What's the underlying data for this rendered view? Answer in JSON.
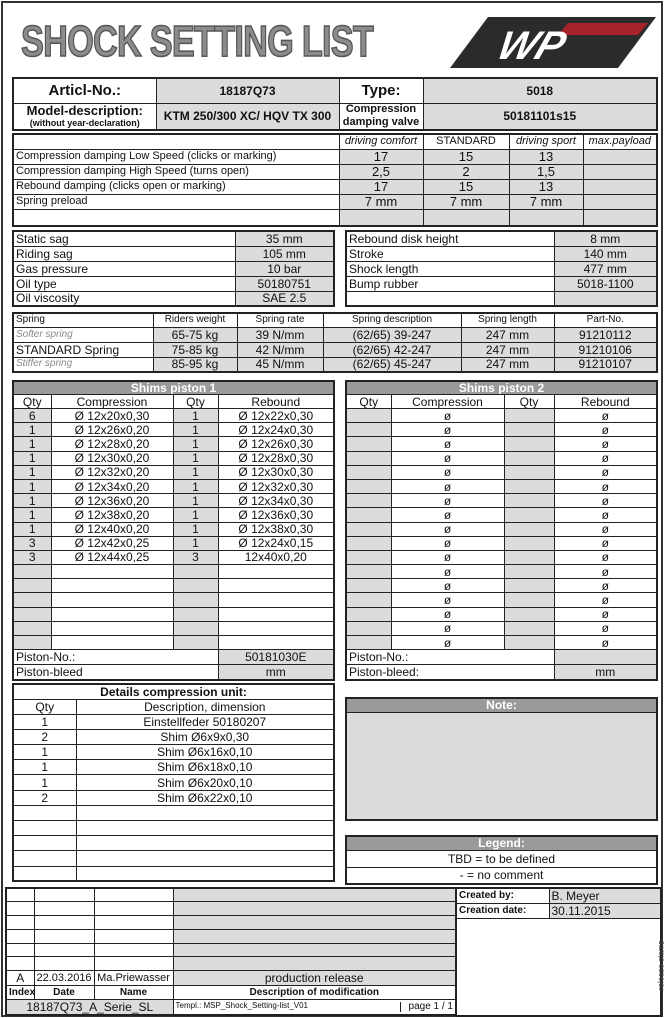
{
  "title": "SHOCK SETTING LIST",
  "logo": "WP",
  "header": {
    "artic_label": "Articl-No.:",
    "artic_value": "18187Q73",
    "type_label": "Type:",
    "type_value": "5018",
    "model_label": "Model-description:",
    "model_sub": "(without year-declaration)",
    "model_value": "KTM 250/300 XC/ HQV TX 300",
    "valve_label1": "Compression",
    "valve_label2": "damping valve",
    "valve_value": "50181101s15"
  },
  "settings": {
    "columns": [
      "",
      "driving comfort",
      "STANDARD",
      "driving sport",
      "max.payload"
    ],
    "rows": [
      [
        "Compression damping Low Speed (clicks or marking)",
        "17",
        "15",
        "13",
        ""
      ],
      [
        "Compression damping High Speed (turns open)",
        "2,5",
        "2",
        "1,5",
        ""
      ],
      [
        "Rebound damping (clicks open or marking)",
        "17",
        "15",
        "13",
        ""
      ],
      [
        "Spring preload",
        "7 mm",
        "7 mm",
        "7 mm",
        ""
      ],
      [
        "",
        "",
        "",
        "",
        ""
      ]
    ]
  },
  "info_left": [
    [
      "Static sag",
      "35 mm"
    ],
    [
      "Riding sag",
      "105 mm"
    ],
    [
      "Gas pressure",
      "10 bar"
    ],
    [
      "Oil type",
      "50180751"
    ],
    [
      "Oil viscosity",
      "SAE 2.5"
    ]
  ],
  "info_right": [
    [
      "Rebound disk height",
      "8 mm"
    ],
    [
      "Stroke",
      "140 mm"
    ],
    [
      "Shock length",
      "477 mm"
    ],
    [
      "Bump rubber",
      "5018-1100"
    ],
    [
      "",
      ""
    ]
  ],
  "springs": {
    "columns": [
      "Spring",
      "Riders weight",
      "Spring rate",
      "Spring description",
      "Spring length",
      "Part-No."
    ],
    "rows": [
      [
        "Softer spring",
        "65-75 kg",
        "39 N/mm",
        "(62/65) 39-247",
        "247 mm",
        "91210112"
      ],
      [
        "STANDARD Spring",
        "75-85 kg",
        "42 N/mm",
        "(62/65) 42-247",
        "247 mm",
        "91210106"
      ],
      [
        "Stiffer spring",
        "85-95 kg",
        "45 N/mm",
        "(62/65) 45-247",
        "247 mm",
        "91210107"
      ]
    ]
  },
  "shims1": {
    "title": "Shims piston 1",
    "columns": [
      "Qty",
      "Compression",
      "Qty",
      "Rebound"
    ],
    "rows": [
      [
        "6",
        "Ø  12x20x0,30",
        "1",
        "Ø  12x22x0,30"
      ],
      [
        "1",
        "Ø  12x26x0,20",
        "1",
        "Ø  12x24x0,30"
      ],
      [
        "1",
        "Ø  12x28x0,20",
        "1",
        "Ø  12x26x0,30"
      ],
      [
        "1",
        "Ø  12x30x0,20",
        "1",
        "Ø  12x28x0,30"
      ],
      [
        "1",
        "Ø  12x32x0,20",
        "1",
        "Ø  12x30x0,30"
      ],
      [
        "1",
        "Ø  12x34x0,20",
        "1",
        "Ø  12x32x0,30"
      ],
      [
        "1",
        "Ø  12x36x0,20",
        "1",
        "Ø  12x34x0,30"
      ],
      [
        "1",
        "Ø  12x38x0,20",
        "1",
        "Ø  12x36x0,30"
      ],
      [
        "1",
        "Ø  12x40x0,20",
        "1",
        "Ø  12x38x0,30"
      ],
      [
        "3",
        "Ø  12x42x0,25",
        "1",
        "Ø  12x24x0,15"
      ],
      [
        "3",
        "Ø  12x44x0,25",
        "3",
        "12x40x0,20"
      ],
      [
        "",
        "",
        "",
        ""
      ],
      [
        "",
        "",
        "",
        ""
      ],
      [
        "",
        "",
        "",
        ""
      ],
      [
        "",
        "",
        "",
        ""
      ],
      [
        "",
        "",
        "",
        ""
      ],
      [
        "",
        "",
        "",
        ""
      ]
    ],
    "piston_no_label": "Piston-No.:",
    "piston_no": "50181030E",
    "piston_bleed_label": "Piston-bleed",
    "piston_bleed": "mm"
  },
  "shims2": {
    "title": "Shims piston 2",
    "columns": [
      "Qty",
      "Compression",
      "Qty",
      "Rebound"
    ],
    "rows": [
      [
        "",
        "ø",
        "",
        "ø"
      ],
      [
        "",
        "ø",
        "",
        "ø"
      ],
      [
        "",
        "ø",
        "",
        "ø"
      ],
      [
        "",
        "ø",
        "",
        "ø"
      ],
      [
        "",
        "ø",
        "",
        "ø"
      ],
      [
        "",
        "ø",
        "",
        "ø"
      ],
      [
        "",
        "ø",
        "",
        "ø"
      ],
      [
        "",
        "ø",
        "",
        "ø"
      ],
      [
        "",
        "ø",
        "",
        "ø"
      ],
      [
        "",
        "ø",
        "",
        "ø"
      ],
      [
        "",
        "ø",
        "",
        "ø"
      ],
      [
        "",
        "ø",
        "",
        "ø"
      ],
      [
        "",
        "ø",
        "",
        "ø"
      ],
      [
        "",
        "ø",
        "",
        "ø"
      ],
      [
        "",
        "ø",
        "",
        "ø"
      ],
      [
        "",
        "ø",
        "",
        "ø"
      ],
      [
        "",
        "ø",
        "",
        "ø"
      ]
    ],
    "piston_no_label": "Piston-No.:",
    "piston_no": "",
    "piston_bleed_label": "Piston-bleed:",
    "piston_bleed": "mm"
  },
  "details": {
    "title": "Details compression unit:",
    "columns": [
      "Qty",
      "Description, dimension"
    ],
    "rows": [
      [
        "1",
        "Einstellfeder 50180207"
      ],
      [
        "2",
        "Shim Ø6x9x0,30"
      ],
      [
        "1",
        "Shim Ø6x16x0,10"
      ],
      [
        "1",
        "Shim Ø6x18x0,10"
      ],
      [
        "1",
        "Shim Ø6x20x0,10"
      ],
      [
        "2",
        "Shim Ø6x22x0,10"
      ],
      [
        "",
        ""
      ],
      [
        "",
        ""
      ],
      [
        "",
        ""
      ],
      [
        "",
        ""
      ],
      [
        "",
        ""
      ]
    ]
  },
  "note": {
    "title": "Note:"
  },
  "legend": {
    "title": "Legend:",
    "items": [
      "TBD = to be defined",
      "- = no comment"
    ]
  },
  "footer": {
    "revisions": [
      [
        "",
        "",
        "",
        ""
      ],
      [
        "",
        "",
        "",
        ""
      ],
      [
        "",
        "",
        "",
        ""
      ],
      [
        "",
        "",
        "",
        ""
      ],
      [
        "",
        "",
        "",
        ""
      ],
      [
        "",
        "",
        "",
        ""
      ],
      [
        "A",
        "22.03.2016",
        "Ma.Priewasser",
        "production release"
      ]
    ],
    "columns": [
      "Index",
      "Date",
      "Name",
      "Description of modification"
    ],
    "doc_id": "18187Q73_A_Serie_SL",
    "template": "Templ.: MSP_Shock_Setting-list_V01",
    "page": "page 1 / 1",
    "created_by_label": "Created by:",
    "created_by": "B. Meyer",
    "creation_date_label": "Creation date:",
    "creation_date": "30.11.2015",
    "release_stamp": "release stamp"
  }
}
